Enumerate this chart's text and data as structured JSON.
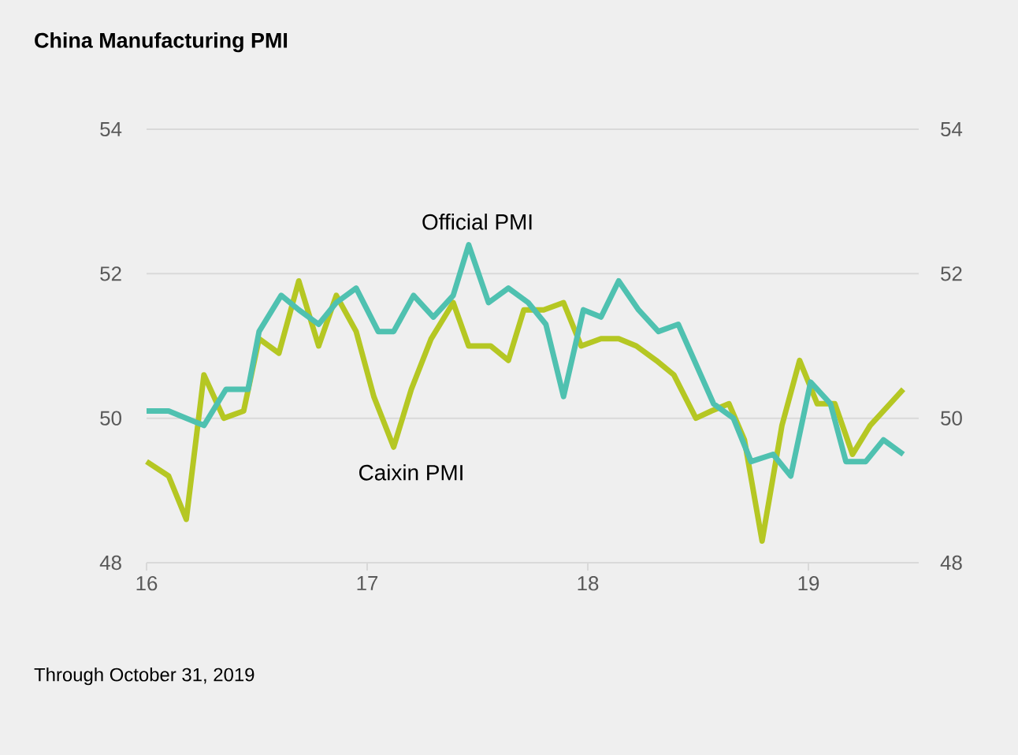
{
  "chart_data": {
    "type": "line",
    "title": "China Manufacturing PMI",
    "annotations": [
      "Through October 31, 2019"
    ],
    "xlim": [
      16,
      19.5
    ],
    "xticks": [
      16,
      17,
      18,
      19
    ],
    "ylim": [
      48,
      54
    ],
    "yticks": [
      48,
      50,
      52,
      54
    ],
    "y2lim": [
      48,
      54
    ],
    "y2ticks": [
      48,
      50,
      52,
      54
    ],
    "grid": "y",
    "legend": false,
    "marker": "none",
    "line_style": "solid",
    "series": [
      {
        "name": "Caixin PMI",
        "color": "#b5c723",
        "x": [
          16.0,
          16.1,
          16.18,
          16.26,
          16.35,
          16.44,
          16.51,
          16.6,
          16.69,
          16.78,
          16.86,
          16.95,
          17.03,
          17.12,
          17.2,
          17.29,
          17.39,
          17.46,
          17.56,
          17.64,
          17.71,
          17.8,
          17.89,
          17.97,
          18.06,
          18.14,
          18.22,
          18.31,
          18.39,
          18.49,
          18.56,
          18.64,
          18.71,
          18.79,
          18.88,
          18.96,
          19.04,
          19.12,
          19.2,
          19.28,
          19.43
        ],
        "values": [
          49.4,
          49.2,
          48.6,
          50.6,
          50.0,
          50.1,
          51.1,
          50.9,
          51.9,
          51.0,
          51.7,
          51.2,
          50.3,
          49.6,
          50.4,
          51.1,
          51.6,
          51.0,
          51.0,
          50.8,
          51.5,
          51.5,
          51.6,
          51.0,
          51.1,
          51.1,
          51.0,
          50.8,
          50.6,
          50.0,
          50.1,
          50.2,
          49.7,
          48.3,
          49.9,
          50.8,
          50.2,
          50.2,
          49.5,
          49.9,
          50.4
        ]
      },
      {
        "name": "Official PMI",
        "color": "#4fc1b0",
        "x": [
          16.0,
          16.1,
          16.26,
          16.36,
          16.46,
          16.51,
          16.61,
          16.69,
          16.78,
          16.86,
          16.95,
          17.05,
          17.12,
          17.21,
          17.3,
          17.39,
          17.46,
          17.55,
          17.64,
          17.73,
          17.81,
          17.89,
          17.98,
          18.06,
          18.14,
          18.23,
          18.32,
          18.41,
          18.57,
          18.66,
          18.74,
          18.84,
          18.92,
          19.01,
          19.1,
          19.17,
          19.26,
          19.34,
          19.43
        ],
        "values": [
          50.1,
          50.1,
          49.9,
          50.4,
          50.4,
          51.2,
          51.7,
          51.5,
          51.3,
          51.6,
          51.8,
          51.2,
          51.2,
          51.7,
          51.4,
          51.7,
          52.4,
          51.6,
          51.8,
          51.6,
          51.3,
          50.3,
          51.5,
          51.4,
          51.9,
          51.5,
          51.2,
          51.3,
          50.2,
          50.0,
          49.4,
          49.5,
          49.2,
          50.5,
          50.2,
          49.4,
          49.4,
          49.7,
          49.5
        ]
      }
    ]
  }
}
